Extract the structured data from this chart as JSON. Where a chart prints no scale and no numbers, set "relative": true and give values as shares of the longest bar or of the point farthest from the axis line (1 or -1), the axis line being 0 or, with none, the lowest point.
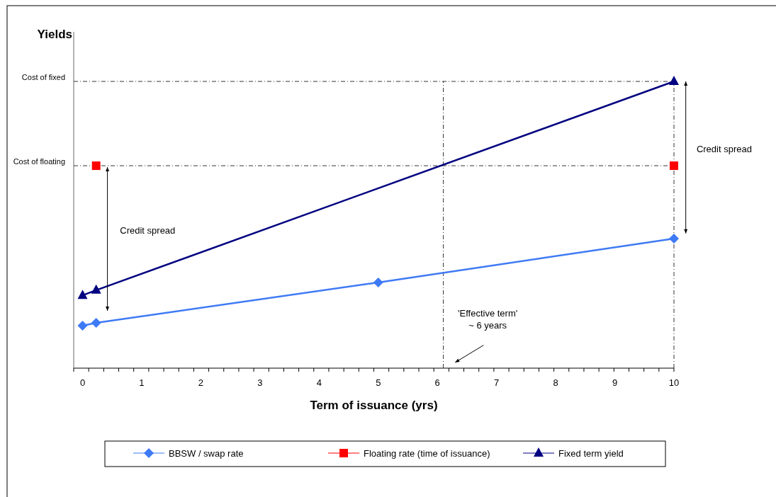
{
  "chart_data": {
    "type": "line",
    "relative": true,
    "xlabel": "Term of issuance (yrs)",
    "ylabel": "Yields",
    "xlim": [
      -0.15,
      10
    ],
    "xticks": [
      0,
      1,
      2,
      3,
      4,
      5,
      6,
      7,
      8,
      9,
      10
    ],
    "series": [
      {
        "name": "BBSW / swap rate",
        "color": "#3f7af5",
        "type": "line",
        "marker": "diamond",
        "x": [
          0,
          0.23,
          5,
          10
        ],
        "values": [
          0.148,
          0.158,
          0.299,
          0.452
        ]
      },
      {
        "name": "Floating rate (time of issuance)",
        "color": "#ff0000",
        "type": "scatter",
        "marker": "square",
        "x": [
          0.23,
          10
        ],
        "values": [
          0.706,
          0.706
        ]
      },
      {
        "name": "Fixed term yield",
        "color": "#000080",
        "type": "line",
        "marker": "triangle",
        "x": [
          0,
          0.23,
          10
        ],
        "values": [
          0.254,
          0.272,
          1.0
        ]
      }
    ],
    "ref_lines": [
      {
        "axis": "y",
        "value": 1.0,
        "label": "Cost of fixed",
        "line_style": "dashdot"
      },
      {
        "axis": "y",
        "value": 0.706,
        "label": "Cost of floating",
        "line_style": "dashdot"
      },
      {
        "axis": "x",
        "value": 6.1,
        "label": null,
        "line_style": "dashdot"
      },
      {
        "axis": "x",
        "value": 10,
        "label": null,
        "line_style": "dashdot"
      }
    ],
    "annotations": [
      "Credit spread",
      "Credit spread",
      "'Effective term'\n~ 6 years"
    ],
    "legend": "bottom",
    "grid": false
  }
}
